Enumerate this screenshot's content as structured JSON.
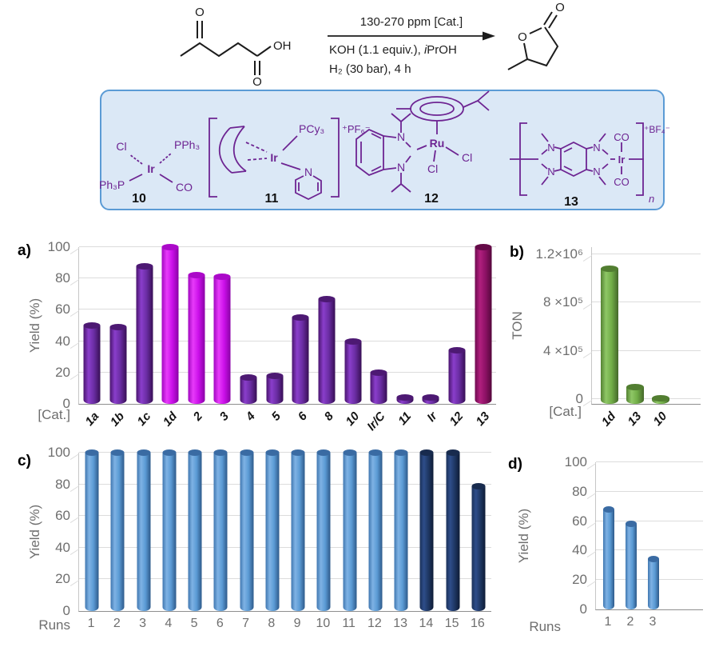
{
  "scheme": {
    "above_arrow": "130-270 ppm [Cat.]",
    "below_arrow_1_parts": [
      "KOH (1.1 equiv.), ",
      "i",
      "PrOH"
    ],
    "below_arrow_2": "H₂ (30 bar), 4 h",
    "atom_o": "O",
    "atom_oh": "OH"
  },
  "catalyst_box": {
    "items": [
      {
        "label": "10",
        "atoms": {
          "cl": "Cl",
          "pph3": "PPh₃",
          "ph3p": "Ph₃P",
          "ir": "Ir",
          "co": "CO"
        }
      },
      {
        "label": "11",
        "atoms": {
          "ir": "Ir",
          "pcy3": "PCy₃",
          "n": "N",
          "counterion": "⁺PF₆⁻"
        }
      },
      {
        "label": "12",
        "atoms": {
          "ru": "Ru",
          "cl": "Cl",
          "n": "N"
        }
      },
      {
        "label": "13",
        "atoms": {
          "n": "N",
          "ir": "Ir",
          "co": "CO",
          "counterion": "⁺BF₄⁻",
          "repeat": "n"
        }
      }
    ]
  },
  "colors": {
    "box_fill": "#dbe8f6",
    "box_border": "#5b9bd5",
    "structure_purple": "#6d2492",
    "axis_text": "#6e6e6e",
    "grid": "#dcdcdc",
    "palette": {
      "purple": {
        "edge": "#4a156e",
        "hi": "#8a3ecb",
        "body": "#6a2da3",
        "edge2": "#380f55",
        "cap": "#4d1973"
      },
      "magenta": {
        "edge": "#a007c0",
        "hi": "#e83bfa",
        "body": "#cb10ea",
        "edge2": "#8a02a6",
        "cap": "#ab09c9"
      },
      "plum": {
        "edge": "#6f0b50",
        "hi": "#b01f7e",
        "body": "#8e1166",
        "edge2": "#54083b",
        "cap": "#650a48"
      },
      "green": {
        "edge": "#548233",
        "hi": "#8fc766",
        "body": "#71ad47",
        "edge2": "#44682a",
        "cap": "#527e31"
      },
      "blue": {
        "edge": "#3f77b0",
        "hi": "#7fb2e4",
        "body": "#5b9bd5",
        "edge2": "#2e5a8a",
        "cap": "#3a6ba3"
      },
      "navy": {
        "edge": "#1b3158",
        "hi": "#2e4d8a",
        "body": "#1f3864",
        "edge2": "#0e1b36",
        "cap": "#182b4e"
      }
    }
  },
  "chart_data": [
    {
      "id": "a",
      "type": "bar",
      "panel_label": "a)",
      "ylabel": "Yield (%)",
      "xlabel": "[Cat.]",
      "ymin": 0,
      "ymax": 100,
      "grid": true,
      "legend": "none",
      "yticks": [
        {
          "v": 0,
          "label": "0"
        },
        {
          "v": 20,
          "label": "20"
        },
        {
          "v": 40,
          "label": "40"
        },
        {
          "v": 60,
          "label": "60"
        },
        {
          "v": 80,
          "label": "80"
        },
        {
          "v": 100,
          "label": "100"
        }
      ],
      "categories": [
        "1a",
        "1b",
        "1c",
        "1d",
        "2",
        "3",
        "4",
        "5",
        "6",
        "8",
        "10",
        "Ir/C",
        "11",
        "Ir",
        "12",
        "13"
      ],
      "values": [
        50,
        49,
        88,
        100,
        82,
        81,
        17,
        18,
        55,
        67,
        40,
        20,
        4,
        4,
        34,
        100
      ],
      "bar_colors": [
        "purple",
        "purple",
        "purple",
        "magenta",
        "magenta",
        "magenta",
        "purple",
        "purple",
        "purple",
        "purple",
        "purple",
        "purple",
        "purple",
        "purple",
        "purple",
        "plum"
      ],
      "category_style": "rotated-bold-italic"
    },
    {
      "id": "b",
      "type": "bar",
      "panel_label": "b)",
      "ylabel": "TON",
      "xlabel": "[Cat.]",
      "ymin": -40000,
      "ymax": 1260000,
      "grid": true,
      "legend": "none",
      "yticks": [
        {
          "v": 0,
          "label": "0"
        },
        {
          "v": 400000,
          "label": "4 ×10⁵"
        },
        {
          "v": 800000,
          "label": "8 ×10⁵"
        },
        {
          "v": 1200000,
          "label": "1.2×10⁶"
        }
      ],
      "categories": [
        "1d",
        "13",
        "10"
      ],
      "values": [
        1080000,
        100000,
        5000
      ],
      "bar_colors": [
        "green",
        "green",
        "green"
      ],
      "category_style": "rotated-bold-italic"
    },
    {
      "id": "c",
      "type": "bar",
      "panel_label": "c)",
      "ylabel": "Yield (%)",
      "xlabel": "Runs",
      "ymin": 0,
      "ymax": 100,
      "grid": true,
      "legend": "none",
      "yticks": [
        {
          "v": 0,
          "label": "0"
        },
        {
          "v": 20,
          "label": "20"
        },
        {
          "v": 40,
          "label": "40"
        },
        {
          "v": 60,
          "label": "60"
        },
        {
          "v": 80,
          "label": "80"
        },
        {
          "v": 100,
          "label": "100"
        }
      ],
      "categories": [
        "1",
        "2",
        "3",
        "4",
        "5",
        "6",
        "7",
        "8",
        "9",
        "10",
        "11",
        "12",
        "13",
        "14",
        "15",
        "16"
      ],
      "values": [
        100,
        100,
        100,
        100,
        100,
        100,
        100,
        100,
        100,
        100,
        100,
        100,
        100,
        100,
        100,
        79
      ],
      "bar_colors": [
        "blue",
        "blue",
        "blue",
        "blue",
        "blue",
        "blue",
        "blue",
        "blue",
        "blue",
        "blue",
        "blue",
        "blue",
        "blue",
        "navy",
        "navy",
        "navy"
      ],
      "category_style": "plain"
    },
    {
      "id": "d",
      "type": "bar",
      "panel_label": "d)",
      "ylabel": "Yield (%)",
      "xlabel": "Runs",
      "ymin": 0,
      "ymax": 100,
      "grid": true,
      "legend": "none",
      "yticks": [
        {
          "v": 0,
          "label": "0"
        },
        {
          "v": 20,
          "label": "20"
        },
        {
          "v": 40,
          "label": "40"
        },
        {
          "v": 60,
          "label": "60"
        },
        {
          "v": 80,
          "label": "80"
        },
        {
          "v": 100,
          "label": "100"
        }
      ],
      "categories": [
        "1",
        "2",
        "3"
      ],
      "values": [
        68,
        58,
        34
      ],
      "bar_colors": [
        "blue",
        "blue",
        "blue"
      ],
      "category_style": "plain"
    }
  ]
}
